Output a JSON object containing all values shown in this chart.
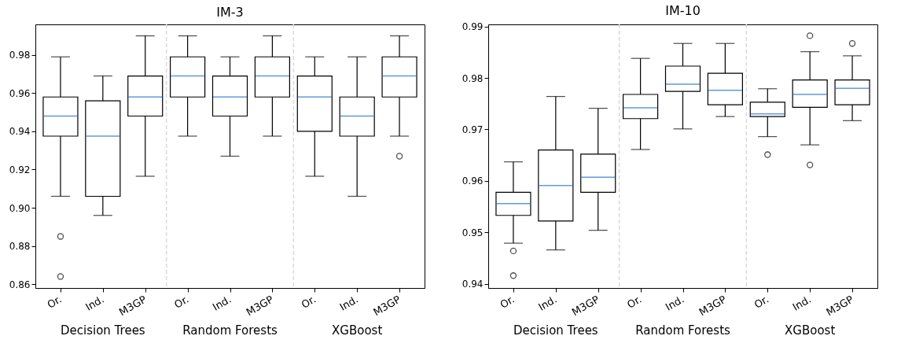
{
  "chart_data": [
    {
      "type": "box",
      "title": "IM-3",
      "categories": [
        "Or.",
        "Ind.",
        "M3GP",
        "Or.",
        "Ind.",
        "M3GP",
        "Or.",
        "Ind.",
        "M3GP"
      ],
      "annotations": [
        "Decision Trees",
        "Random Forests",
        "XGBoost"
      ],
      "ylim": [
        0.858,
        0.996
      ],
      "yticks": [
        0.86,
        0.88,
        {
          "value": 0.9,
          "label": "0.90"
        },
        0.92,
        0.94,
        0.96,
        0.98
      ],
      "boxes": [
        {
          "low": 0.906,
          "q1": 0.9375,
          "median": 0.948,
          "q3": 0.958,
          "high": 0.979,
          "outliers": [
            0.885,
            0.864
          ]
        },
        {
          "low": 0.896,
          "q1": 0.906,
          "median": 0.9375,
          "q3": 0.956,
          "high": 0.969
        },
        {
          "low": 0.9165,
          "q1": 0.948,
          "median": 0.958,
          "q3": 0.969,
          "high": 0.99
        },
        {
          "low": 0.9375,
          "q1": 0.958,
          "median": 0.969,
          "q3": 0.979,
          "high": 0.99
        },
        {
          "low": 0.927,
          "q1": 0.948,
          "median": 0.958,
          "q3": 0.969,
          "high": 0.979
        },
        {
          "low": 0.9375,
          "q1": 0.958,
          "median": 0.969,
          "q3": 0.979,
          "high": 0.99
        },
        {
          "low": 0.9165,
          "q1": 0.94,
          "median": 0.958,
          "q3": 0.969,
          "high": 0.979
        },
        {
          "low": 0.906,
          "q1": 0.9375,
          "median": 0.948,
          "q3": 0.958,
          "high": 0.979
        },
        {
          "low": 0.9375,
          "q1": 0.958,
          "median": 0.969,
          "q3": 0.979,
          "high": 0.99,
          "outliers": [
            0.927
          ]
        }
      ]
    },
    {
      "type": "box",
      "title": "IM-10",
      "categories": [
        "Or.",
        "Ind.",
        "M3GP",
        "Or.",
        "Ind.",
        "M3GP",
        "Or.",
        "Ind.",
        "M3GP"
      ],
      "annotations": [
        "Decision Trees",
        "Random Forests",
        "XGBoost"
      ],
      "ylim": [
        0.9392,
        0.9904
      ],
      "yticks": [
        0.94,
        0.95,
        0.96,
        0.97,
        0.98,
        0.99
      ],
      "boxes": [
        {
          "low": 0.9479,
          "q1": 0.9533,
          "median": 0.9556,
          "q3": 0.9578,
          "high": 0.9637,
          "outliers": [
            0.9464,
            0.9416
          ]
        },
        {
          "low": 0.9466,
          "q1": 0.9522,
          "median": 0.9591,
          "q3": 0.966,
          "high": 0.9764
        },
        {
          "low": 0.9504,
          "q1": 0.9578,
          "median": 0.9607,
          "q3": 0.9652,
          "high": 0.9741
        },
        {
          "low": 0.9661,
          "q1": 0.9721,
          "median": 0.9742,
          "q3": 0.9768,
          "high": 0.9838
        },
        {
          "low": 0.9701,
          "q1": 0.9774,
          "median": 0.9788,
          "q3": 0.9823,
          "high": 0.9867
        },
        {
          "low": 0.9725,
          "q1": 0.9748,
          "median": 0.9776,
          "q3": 0.9809,
          "high": 0.9867
        },
        {
          "low": 0.9686,
          "q1": 0.9725,
          "median": 0.973,
          "q3": 0.9753,
          "high": 0.9779,
          "outliers": [
            0.9651
          ]
        },
        {
          "low": 0.967,
          "q1": 0.9743,
          "median": 0.9768,
          "q3": 0.9796,
          "high": 0.9851,
          "outliers": [
            0.9882,
            0.9631
          ]
        },
        {
          "low": 0.9717,
          "q1": 0.9748,
          "median": 0.978,
          "q3": 0.9796,
          "high": 0.9843,
          "outliers": [
            0.9867
          ]
        }
      ]
    }
  ]
}
